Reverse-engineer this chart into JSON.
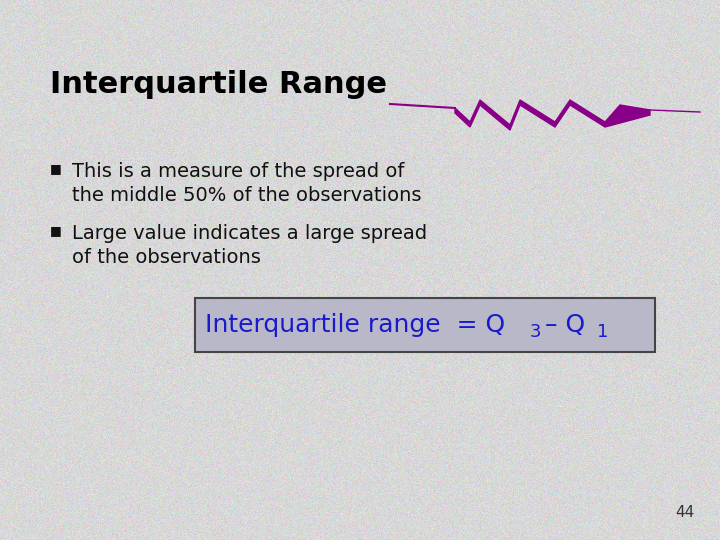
{
  "title": "Interquartile Range",
  "bullet1_line1": "This is a measure of the spread of",
  "bullet1_line2": "the middle 50% of the observations",
  "bullet2_line1": "Large value indicates a large spread",
  "bullet2_line2": "of the observations",
  "background_color": "#d8d8d8",
  "title_color": "#000000",
  "bullet_color": "#111111",
  "formula_color": "#1a1acc",
  "formula_box_color": "#b8b8c8",
  "page_number": "44",
  "title_fontsize": 22,
  "bullet_fontsize": 14,
  "formula_fontsize": 18,
  "page_fontsize": 11,
  "purple_color": "#880088"
}
